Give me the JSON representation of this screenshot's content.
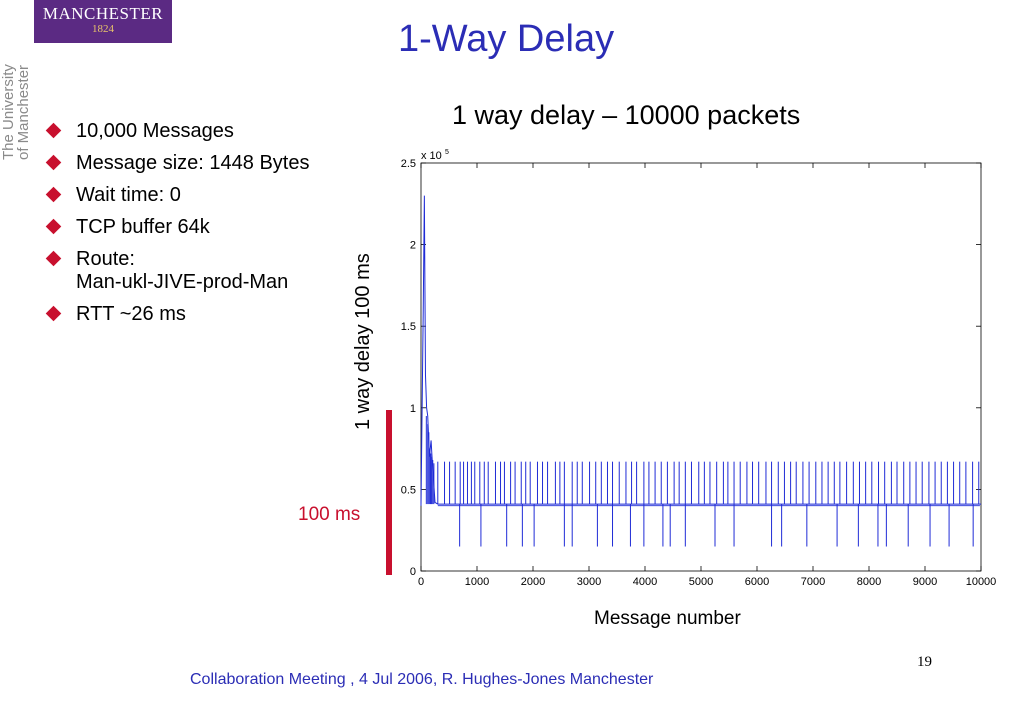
{
  "logo": {
    "text": "MANCHESTER",
    "year": "1824"
  },
  "university": {
    "line1": "The University",
    "line2": "of Manchester"
  },
  "slide_title": "1-Way Delay",
  "bullets": [
    {
      "text": "10,000 Messages"
    },
    {
      "text": "Message size: 1448 Bytes"
    },
    {
      "text": "Wait time: 0"
    },
    {
      "text": "TCP buffer 64k"
    },
    {
      "text": "Route:\nMan-ukl-JIVE-prod-Man"
    },
    {
      "text": "RTT ~26 ms"
    }
  ],
  "scale_bar_label": "100 ms",
  "footer": "Collaboration Meeting , 4 Jul 2006,  R. Hughes-Jones  Manchester",
  "page_number": "19",
  "colors": {
    "title": "#2b2db5",
    "accent": "#c8102e",
    "series": "#1f2bd6",
    "logo_bg": "#5b2a83"
  },
  "chart_data": {
    "type": "line",
    "title": "1 way delay – 10000 packets",
    "xlabel": "Message number",
    "ylabel": "1 way delay 100 ms",
    "y_multiplier": "x 10^5",
    "xlim": [
      0,
      10000
    ],
    "ylim": [
      0,
      2.5
    ],
    "x_ticks": [
      "0",
      "1000",
      "2000",
      "3000",
      "4000",
      "5000",
      "6000",
      "7000",
      "8000",
      "9000",
      "10000"
    ],
    "y_ticks": [
      "0",
      "0.5",
      "1",
      "1.5",
      "2",
      "2.5"
    ],
    "grid": false,
    "series": [
      {
        "x": [
          0,
          40,
          60,
          80,
          100,
          120,
          150,
          180,
          200,
          250,
          300,
          2000,
          4000,
          6000,
          8000,
          10000
        ],
        "y": [
          0.4,
          1.6,
          2.3,
          1.2,
          1.0,
          0.95,
          0.7,
          0.8,
          0.68,
          0.42,
          0.41,
          0.41,
          0.41,
          0.41,
          0.41,
          0.41
        ]
      }
    ],
    "spikes_high": [
      300,
      420,
      510,
      610,
      700,
      760,
      830,
      900,
      960,
      1050,
      1130,
      1200,
      1330,
      1420,
      1490,
      1600,
      1680,
      1790,
      1870,
      1950,
      2080,
      2170,
      2260,
      2400,
      2480,
      2560,
      2700,
      2790,
      2880,
      3010,
      3120,
      3220,
      3330,
      3420,
      3540,
      3660,
      3760,
      3850,
      3980,
      4070,
      4180,
      4290,
      4400,
      4520,
      4610,
      4720,
      4830,
      4960,
      5060,
      5160,
      5280,
      5400,
      5480,
      5590,
      5700,
      5820,
      5920,
      6030,
      6160,
      6260,
      6380,
      6490,
      6600,
      6700,
      6820,
      6930,
      7050,
      7160,
      7270,
      7380,
      7480,
      7600,
      7720,
      7830,
      7940,
      8050,
      8170,
      8280,
      8400,
      8500,
      8620,
      8730,
      8840,
      8950,
      9070,
      9180,
      9290,
      9400,
      9510,
      9620,
      9730,
      9850,
      9960
    ],
    "spike_high_value": 0.67,
    "spikes_low": [
      690,
      1070,
      1530,
      1810,
      2020,
      2560,
      2700,
      3150,
      3420,
      3740,
      3980,
      4320,
      4450,
      4720,
      5250,
      5590,
      6260,
      6440,
      6890,
      7430,
      7810,
      8160,
      8310,
      8700,
      9090,
      9430,
      9860
    ],
    "spike_low_value": 0.15
  }
}
